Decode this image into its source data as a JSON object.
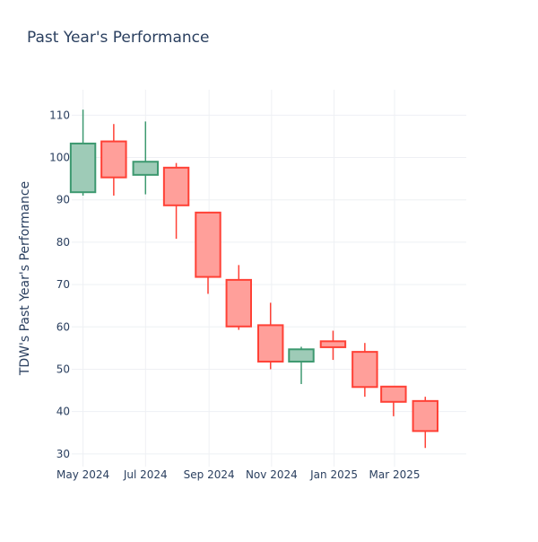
{
  "chart_data": {
    "type": "candlestick",
    "title": "Past Year's Performance",
    "xlabel": "",
    "ylabel": "TDW's Past Year's Performance",
    "ylim": [
      27,
      116
    ],
    "yticks": [
      30,
      40,
      50,
      60,
      70,
      80,
      90,
      100,
      110
    ],
    "xticks": [
      {
        "date": "2024-05-01",
        "label": "May 2024"
      },
      {
        "date": "2024-07-01",
        "label": "Jul 2024"
      },
      {
        "date": "2024-09-01",
        "label": "Sep 2024"
      },
      {
        "date": "2024-11-01",
        "label": "Nov 2024"
      },
      {
        "date": "2025-01-01",
        "label": "Jan 2025"
      },
      {
        "date": "2025-03-01",
        "label": "Mar 2025"
      }
    ],
    "xrange": [
      "2024-04-20",
      "2025-05-10"
    ],
    "grid": true,
    "colors": {
      "increasing": "#3d9970",
      "decreasing": "#ff4136",
      "increasing_fill": "#9ecbb7",
      "decreasing_fill": "#ff9f9a",
      "grid": "#eef0f4"
    },
    "candles": [
      {
        "date": "2024-05-01",
        "open": 91.8,
        "high": 111.3,
        "low": 91.0,
        "close": 103.3
      },
      {
        "date": "2024-05-31",
        "open": 103.8,
        "high": 107.9,
        "low": 91.0,
        "close": 95.3
      },
      {
        "date": "2024-07-01",
        "open": 95.9,
        "high": 108.5,
        "low": 91.3,
        "close": 99.0
      },
      {
        "date": "2024-07-31",
        "open": 97.6,
        "high": 98.7,
        "low": 80.8,
        "close": 88.7
      },
      {
        "date": "2024-08-31",
        "open": 87.0,
        "high": 87.1,
        "low": 67.8,
        "close": 71.8
      },
      {
        "date": "2024-09-30",
        "open": 71.1,
        "high": 74.6,
        "low": 59.3,
        "close": 60.1
      },
      {
        "date": "2024-10-31",
        "open": 60.4,
        "high": 65.7,
        "low": 50.0,
        "close": 51.8
      },
      {
        "date": "2024-11-30",
        "open": 51.8,
        "high": 55.3,
        "low": 46.5,
        "close": 54.7
      },
      {
        "date": "2024-12-31",
        "open": 56.6,
        "high": 59.1,
        "low": 52.2,
        "close": 55.2
      },
      {
        "date": "2025-01-31",
        "open": 54.1,
        "high": 56.2,
        "low": 43.5,
        "close": 45.8
      },
      {
        "date": "2025-02-28",
        "open": 45.9,
        "high": 45.9,
        "low": 38.9,
        "close": 42.3
      },
      {
        "date": "2025-03-31",
        "open": 42.5,
        "high": 43.5,
        "low": 31.4,
        "close": 35.4
      }
    ]
  }
}
